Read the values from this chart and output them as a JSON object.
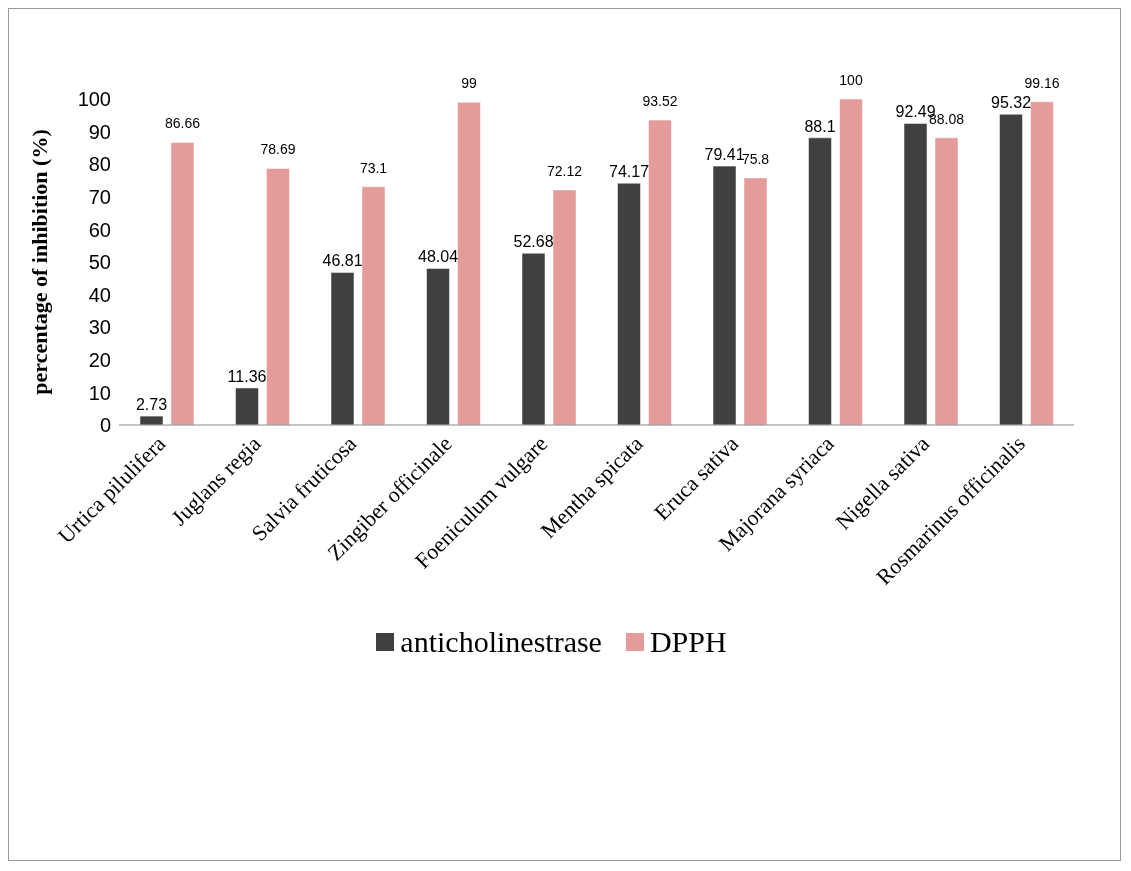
{
  "chart_data": {
    "type": "bar",
    "ylabel": "percentage of inhibition (%)",
    "categories": [
      "Urtica pilulifera",
      "Juglans regia",
      "Salvia fruticosa",
      "Zingiber officinale",
      "Foeniculum vulgare",
      "Mentha spicata",
      "Eruca sativa",
      "Majorana syriaca",
      "Nigella sativa",
      "Rosmarinus officinalis"
    ],
    "series": [
      {
        "name": "anticholinestrase",
        "color": "#404040",
        "values": [
          2.73,
          11.36,
          46.81,
          48.04,
          52.68,
          74.17,
          79.41,
          88.1,
          92.49,
          95.32
        ]
      },
      {
        "name": "DPPH",
        "color": "#e39c9a",
        "values": [
          86.66,
          78.69,
          73.1,
          99,
          72.12,
          93.52,
          75.8,
          100,
          88.08,
          99.16
        ]
      }
    ],
    "ylim": [
      0,
      100
    ],
    "yticks": [
      0,
      10,
      20,
      30,
      40,
      50,
      60,
      70,
      80,
      90,
      100
    ],
    "grid": false,
    "legend": "bottom",
    "data_labels": true
  }
}
